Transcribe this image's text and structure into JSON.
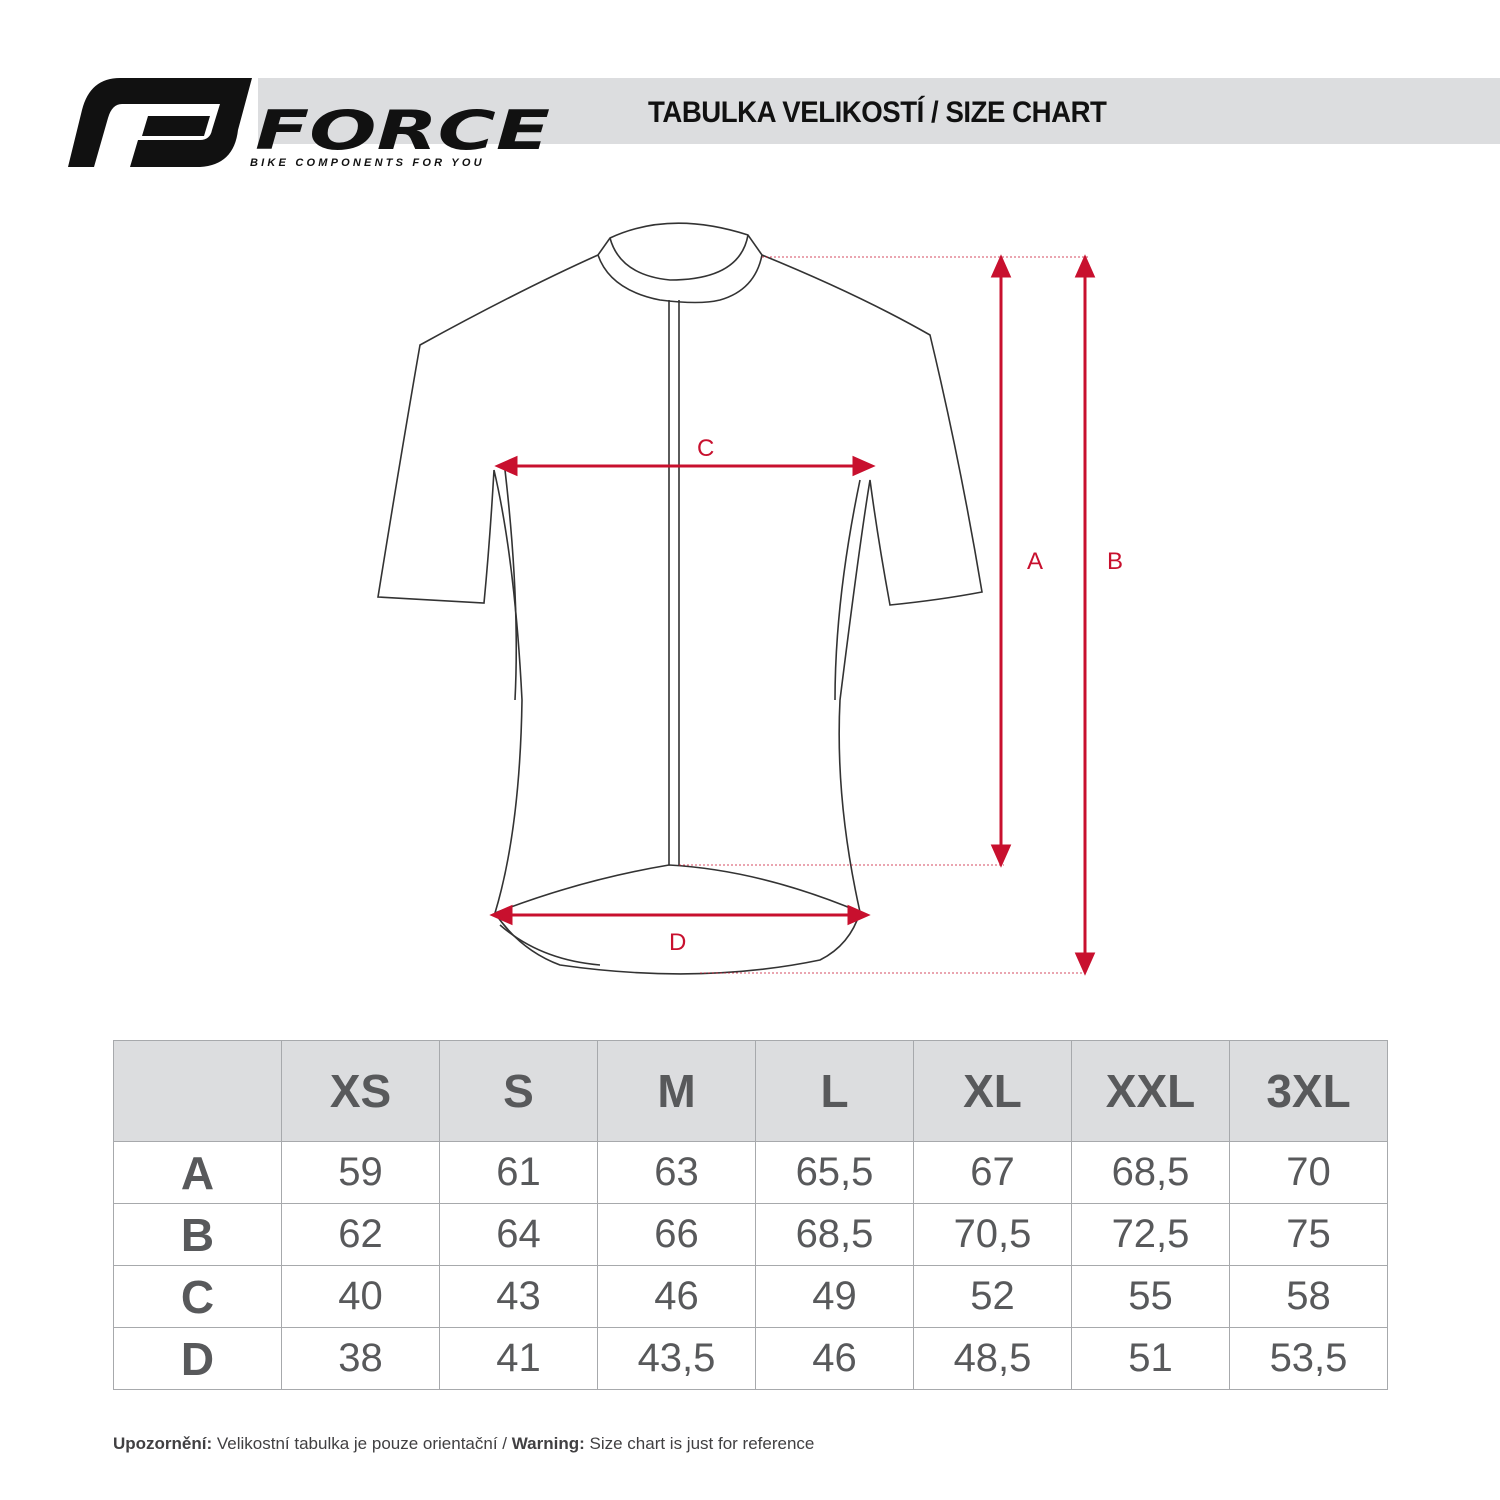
{
  "logo": {
    "brand": "FORCE",
    "tagline": "BIKE COMPONENTS FOR YOU"
  },
  "header": {
    "title": "TABULKA VELIKOSTÍ / SIZE CHART"
  },
  "diagram": {
    "labels": {
      "a": "A",
      "b": "B",
      "c": "C",
      "d": "D"
    },
    "accent_color": "#c8102e"
  },
  "table": {
    "columns": [
      "",
      "XS",
      "S",
      "M",
      "L",
      "XL",
      "XXL",
      "3XL"
    ],
    "rows": [
      {
        "label": "A",
        "values": [
          "59",
          "61",
          "63",
          "65,5",
          "67",
          "68,5",
          "70"
        ]
      },
      {
        "label": "B",
        "values": [
          "62",
          "64",
          "66",
          "68,5",
          "70,5",
          "72,5",
          "75"
        ]
      },
      {
        "label": "C",
        "values": [
          "40",
          "43",
          "46",
          "49",
          "52",
          "55",
          "58"
        ]
      },
      {
        "label": "D",
        "values": [
          "38",
          "41",
          "43,5",
          "46",
          "48,5",
          "51",
          "53,5"
        ]
      }
    ]
  },
  "note": {
    "warn_cz_label": "Upozornění:",
    "warn_cz_text": " Velikostní tabulka je pouze orientační / ",
    "warn_en_label": "Warning:",
    "warn_en_text": " Size chart is just for reference"
  }
}
